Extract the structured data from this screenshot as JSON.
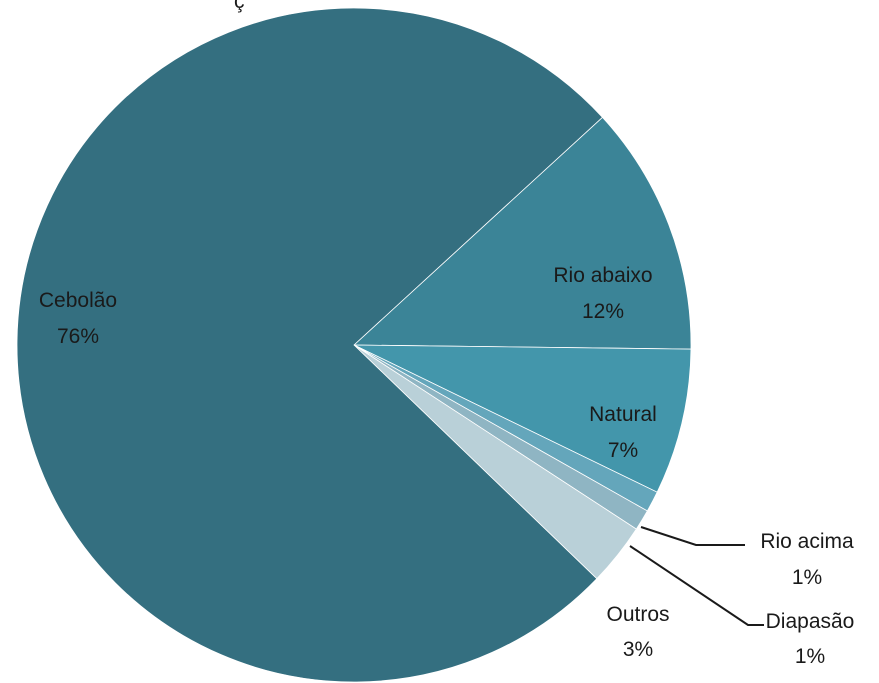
{
  "header_fragment": "ç",
  "chart_data": {
    "type": "pie",
    "title": "",
    "slices": [
      {
        "label": "Cebolão",
        "percent_label": "76%",
        "value": 76,
        "color": "#346f80"
      },
      {
        "label": "Rio abaixo",
        "percent_label": "12%",
        "value": 12,
        "color": "#3b8497"
      },
      {
        "label": "Natural",
        "percent_label": "7%",
        "value": 7,
        "color": "#4396ab"
      },
      {
        "label": "Rio acima",
        "percent_label": "1%",
        "value": 1,
        "color": "#64a6bb"
      },
      {
        "label": "Diapasão",
        "percent_label": "1%",
        "value": 1,
        "color": "#8fb5c3"
      },
      {
        "label": "Outros",
        "percent_label": "3%",
        "value": 3,
        "color": "#b9d0d8"
      }
    ],
    "start_slice": "Rio abaixo",
    "direction": "clockwise",
    "labels": "category name and percent on each slice; leader lines for Rio acima and Diapasão"
  }
}
